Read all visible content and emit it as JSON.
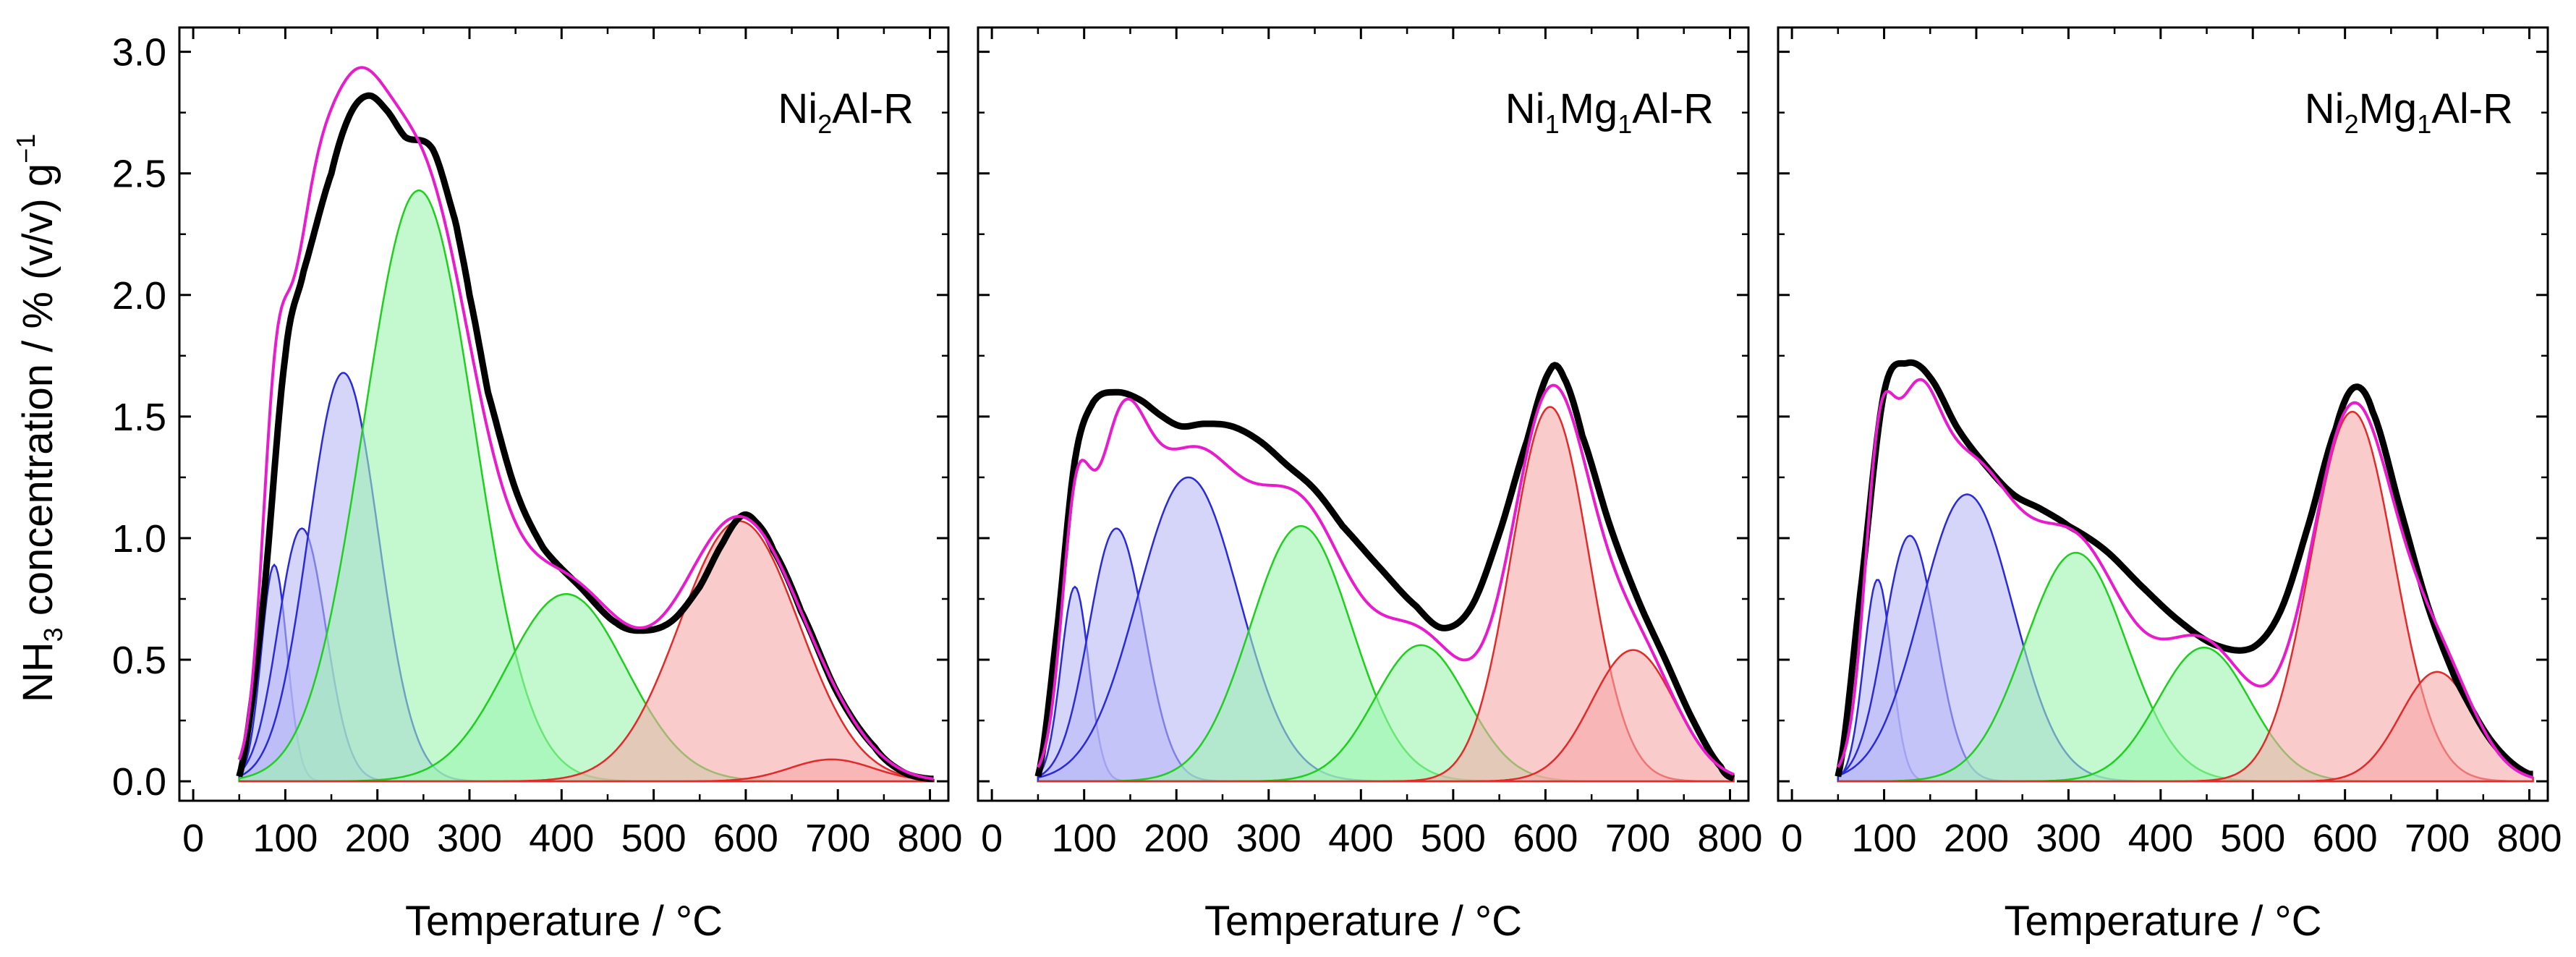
{
  "y_axis_title": {
    "main": "NH",
    "sub": "3",
    "rest": " concentration / % (v/v) g",
    "sup": "−1"
  },
  "colors": {
    "measured": "#000000",
    "fit": "#e81ccc",
    "blue": "#2a2ad8",
    "blue_fill": "#b9b9f6",
    "green": "#1ecf1e",
    "green_fill": "#9cf5b0",
    "red": "#e22a2a",
    "red_fill": "#f7a9a9"
  },
  "chart_data": [
    {
      "type": "area",
      "title": "Ni2Al-R",
      "title_parts": [
        {
          "t": "Ni",
          "s": false
        },
        {
          "t": "2",
          "s": true
        },
        {
          "t": "Al-R",
          "s": false
        }
      ],
      "xlabel": "Temperature / °C",
      "ylabel": "NH3 concentration / % (v/v) g−1",
      "xlim": [
        -15,
        820
      ],
      "ylim": [
        -0.08,
        3.1
      ],
      "xticks": [
        0,
        100,
        200,
        300,
        400,
        500,
        600,
        700,
        800
      ],
      "yticks": [
        0.0,
        0.5,
        1.0,
        1.5,
        2.0,
        2.5,
        3.0
      ],
      "x_range": [
        50,
        805
      ],
      "peaks": [
        {
          "group": "blue",
          "center": 88,
          "height": 0.89,
          "width": 14
        },
        {
          "group": "blue",
          "center": 118,
          "height": 1.04,
          "width": 26
        },
        {
          "group": "blue",
          "center": 163,
          "height": 1.68,
          "width": 38
        },
        {
          "group": "green",
          "center": 245,
          "height": 2.43,
          "width": 60
        },
        {
          "group": "green",
          "center": 405,
          "height": 0.77,
          "width": 65
        },
        {
          "group": "red",
          "center": 593,
          "height": 1.07,
          "width": 65
        },
        {
          "group": "red",
          "center": 693,
          "height": 0.09,
          "width": 45
        }
      ],
      "measured": [
        [
          50,
          0.02
        ],
        [
          75,
          0.7
        ],
        [
          100,
          1.75
        ],
        [
          120,
          2.1
        ],
        [
          150,
          2.5
        ],
        [
          170,
          2.74
        ],
        [
          190,
          2.82
        ],
        [
          210,
          2.76
        ],
        [
          230,
          2.65
        ],
        [
          260,
          2.6
        ],
        [
          285,
          2.3
        ],
        [
          300,
          2.0
        ],
        [
          320,
          1.6
        ],
        [
          350,
          1.2
        ],
        [
          380,
          0.96
        ],
        [
          420,
          0.8
        ],
        [
          460,
          0.65
        ],
        [
          490,
          0.62
        ],
        [
          520,
          0.66
        ],
        [
          550,
          0.8
        ],
        [
          575,
          0.98
        ],
        [
          595,
          1.09
        ],
        [
          610,
          1.07
        ],
        [
          630,
          0.95
        ],
        [
          660,
          0.7
        ],
        [
          700,
          0.36
        ],
        [
          740,
          0.14
        ],
        [
          770,
          0.04
        ],
        [
          800,
          0.01
        ]
      ]
    },
    {
      "type": "area",
      "title": "Ni1Mg1Al-R",
      "title_parts": [
        {
          "t": "Ni",
          "s": false
        },
        {
          "t": "1",
          "s": true
        },
        {
          "t": "Mg",
          "s": false
        },
        {
          "t": "1",
          "s": true
        },
        {
          "t": "Al-R",
          "s": false
        }
      ],
      "xlabel": "Temperature / °C",
      "ylabel": "",
      "xlim": [
        -15,
        820
      ],
      "ylim": [
        -0.08,
        3.1
      ],
      "xticks": [
        0,
        100,
        200,
        300,
        400,
        500,
        600,
        700,
        800
      ],
      "yticks": [
        0.0,
        0.5,
        1.0,
        1.5,
        2.0,
        2.5,
        3.0
      ],
      "x_range": [
        50,
        805
      ],
      "peaks": [
        {
          "group": "blue",
          "center": 90,
          "height": 0.8,
          "width": 15
        },
        {
          "group": "blue",
          "center": 135,
          "height": 1.04,
          "width": 30
        },
        {
          "group": "blue",
          "center": 213,
          "height": 1.25,
          "width": 55
        },
        {
          "group": "green",
          "center": 335,
          "height": 1.05,
          "width": 55
        },
        {
          "group": "green",
          "center": 465,
          "height": 0.56,
          "width": 50
        },
        {
          "group": "red",
          "center": 605,
          "height": 1.54,
          "width": 42
        },
        {
          "group": "red",
          "center": 695,
          "height": 0.54,
          "width": 45
        }
      ],
      "measured": [
        [
          50,
          0.02
        ],
        [
          70,
          0.6
        ],
        [
          90,
          1.32
        ],
        [
          110,
          1.56
        ],
        [
          135,
          1.6
        ],
        [
          160,
          1.57
        ],
        [
          185,
          1.5
        ],
        [
          205,
          1.46
        ],
        [
          230,
          1.47
        ],
        [
          260,
          1.46
        ],
        [
          290,
          1.4
        ],
        [
          320,
          1.3
        ],
        [
          350,
          1.2
        ],
        [
          380,
          1.05
        ],
        [
          420,
          0.88
        ],
        [
          460,
          0.72
        ],
        [
          490,
          0.63
        ],
        [
          520,
          0.72
        ],
        [
          550,
          1.02
        ],
        [
          580,
          1.4
        ],
        [
          605,
          1.69
        ],
        [
          620,
          1.66
        ],
        [
          640,
          1.42
        ],
        [
          670,
          1.05
        ],
        [
          700,
          0.75
        ],
        [
          730,
          0.5
        ],
        [
          760,
          0.25
        ],
        [
          790,
          0.06
        ],
        [
          805,
          0.01
        ]
      ]
    },
    {
      "type": "area",
      "title": "Ni2Mg1Al-R",
      "title_parts": [
        {
          "t": "Ni",
          "s": false
        },
        {
          "t": "2",
          "s": true
        },
        {
          "t": "Mg",
          "s": false
        },
        {
          "t": "1",
          "s": true
        },
        {
          "t": "Al-R",
          "s": false
        }
      ],
      "xlabel": "Temperature / °C",
      "ylabel": "",
      "xlim": [
        -15,
        820
      ],
      "ylim": [
        -0.08,
        3.1
      ],
      "xticks": [
        0,
        100,
        200,
        300,
        400,
        500,
        600,
        700,
        800
      ],
      "yticks": [
        0.0,
        0.5,
        1.0,
        1.5,
        2.0,
        2.5,
        3.0
      ],
      "x_range": [
        50,
        805
      ],
      "peaks": [
        {
          "group": "blue",
          "center": 93,
          "height": 0.83,
          "width": 15
        },
        {
          "group": "blue",
          "center": 128,
          "height": 1.01,
          "width": 28
        },
        {
          "group": "blue",
          "center": 190,
          "height": 1.18,
          "width": 50
        },
        {
          "group": "green",
          "center": 308,
          "height": 0.94,
          "width": 55
        },
        {
          "group": "green",
          "center": 447,
          "height": 0.55,
          "width": 50
        },
        {
          "group": "red",
          "center": 608,
          "height": 1.52,
          "width": 45
        },
        {
          "group": "red",
          "center": 700,
          "height": 0.45,
          "width": 40
        }
      ],
      "measured": [
        [
          50,
          0.02
        ],
        [
          75,
          0.8
        ],
        [
          100,
          1.6
        ],
        [
          125,
          1.72
        ],
        [
          150,
          1.66
        ],
        [
          180,
          1.45
        ],
        [
          210,
          1.3
        ],
        [
          240,
          1.18
        ],
        [
          270,
          1.12
        ],
        [
          300,
          1.05
        ],
        [
          340,
          0.95
        ],
        [
          380,
          0.8
        ],
        [
          420,
          0.66
        ],
        [
          460,
          0.56
        ],
        [
          500,
          0.55
        ],
        [
          530,
          0.7
        ],
        [
          560,
          1.05
        ],
        [
          590,
          1.45
        ],
        [
          610,
          1.62
        ],
        [
          630,
          1.52
        ],
        [
          660,
          1.12
        ],
        [
          690,
          0.72
        ],
        [
          720,
          0.42
        ],
        [
          760,
          0.16
        ],
        [
          800,
          0.03
        ]
      ]
    }
  ]
}
